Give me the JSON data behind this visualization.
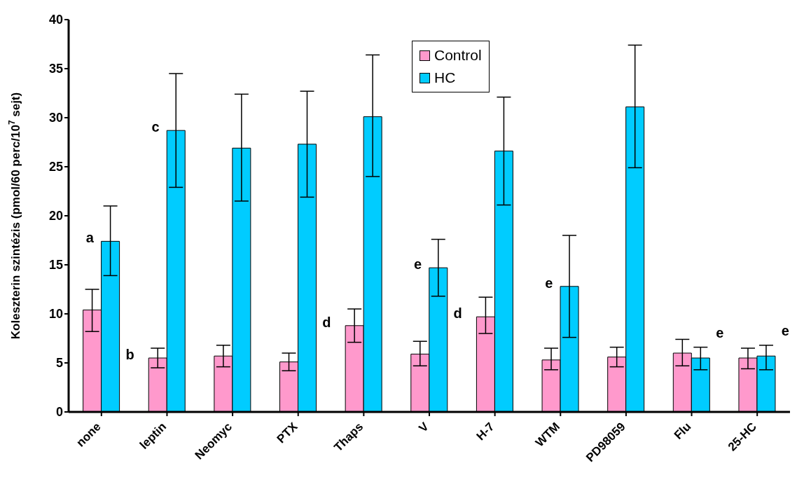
{
  "chart_data": {
    "type": "bar",
    "ylabel": "Koleszterin szintézis (pmol/60 perc/10$^{7}$ sejt)",
    "categories": [
      "none",
      "leptin",
      "Neomyc",
      "PTX",
      "Thaps",
      "V",
      "H-7",
      "WTM",
      "PD98059",
      "Flu",
      "25-HC"
    ],
    "series": [
      {
        "name": "Control",
        "color": "#ff99cc",
        "values": [
          10.4,
          5.5,
          5.7,
          5.1,
          8.8,
          5.9,
          9.7,
          5.3,
          5.6,
          6.0,
          5.5
        ],
        "errors": [
          [
            8.2,
            12.5
          ],
          [
            4.5,
            6.5
          ],
          [
            4.6,
            6.8
          ],
          [
            4.2,
            6.0
          ],
          [
            7.1,
            10.5
          ],
          [
            4.7,
            7.2
          ],
          [
            8.0,
            11.7
          ],
          [
            4.3,
            6.5
          ],
          [
            4.6,
            6.6
          ],
          [
            4.7,
            7.4
          ],
          [
            4.4,
            6.5
          ]
        ]
      },
      {
        "name": "HC",
        "color": "#00ccff",
        "values": [
          17.4,
          28.7,
          26.9,
          27.3,
          30.1,
          14.7,
          26.6,
          12.8,
          31.1,
          5.5,
          5.7
        ],
        "errors": [
          [
            13.9,
            21.0
          ],
          [
            22.9,
            34.5
          ],
          [
            21.5,
            32.4
          ],
          [
            21.9,
            32.7
          ],
          [
            24.0,
            36.4
          ],
          [
            11.8,
            17.6
          ],
          [
            21.1,
            32.1
          ],
          [
            7.6,
            18.0
          ],
          [
            24.9,
            37.4
          ],
          [
            4.3,
            6.6
          ],
          [
            4.3,
            6.8
          ]
        ]
      }
    ],
    "annotations": [
      {
        "text": "a",
        "x": "none",
        "y": 17.4
      },
      {
        "text": "b",
        "x": "leptin",
        "y": 5.5
      },
      {
        "text": "c",
        "x": "leptin",
        "y": 28.7
      },
      {
        "text": "d",
        "x": "Thaps",
        "y": 8.8
      },
      {
        "text": "e",
        "x": "V",
        "y": 14.7
      },
      {
        "text": "d",
        "x": "H-7",
        "y": 9.7
      },
      {
        "text": "e",
        "x": "WTM",
        "y": 12.8
      },
      {
        "text": "e",
        "x": "Flu",
        "y": 5.5
      },
      {
        "text": "e",
        "x": "25-HC",
        "y": 5.7
      }
    ],
    "ylim": [
      0,
      40
    ],
    "yticks": [
      0,
      5,
      10,
      15,
      20,
      25,
      30,
      35,
      40
    ],
    "grid": false,
    "legend": "top"
  }
}
